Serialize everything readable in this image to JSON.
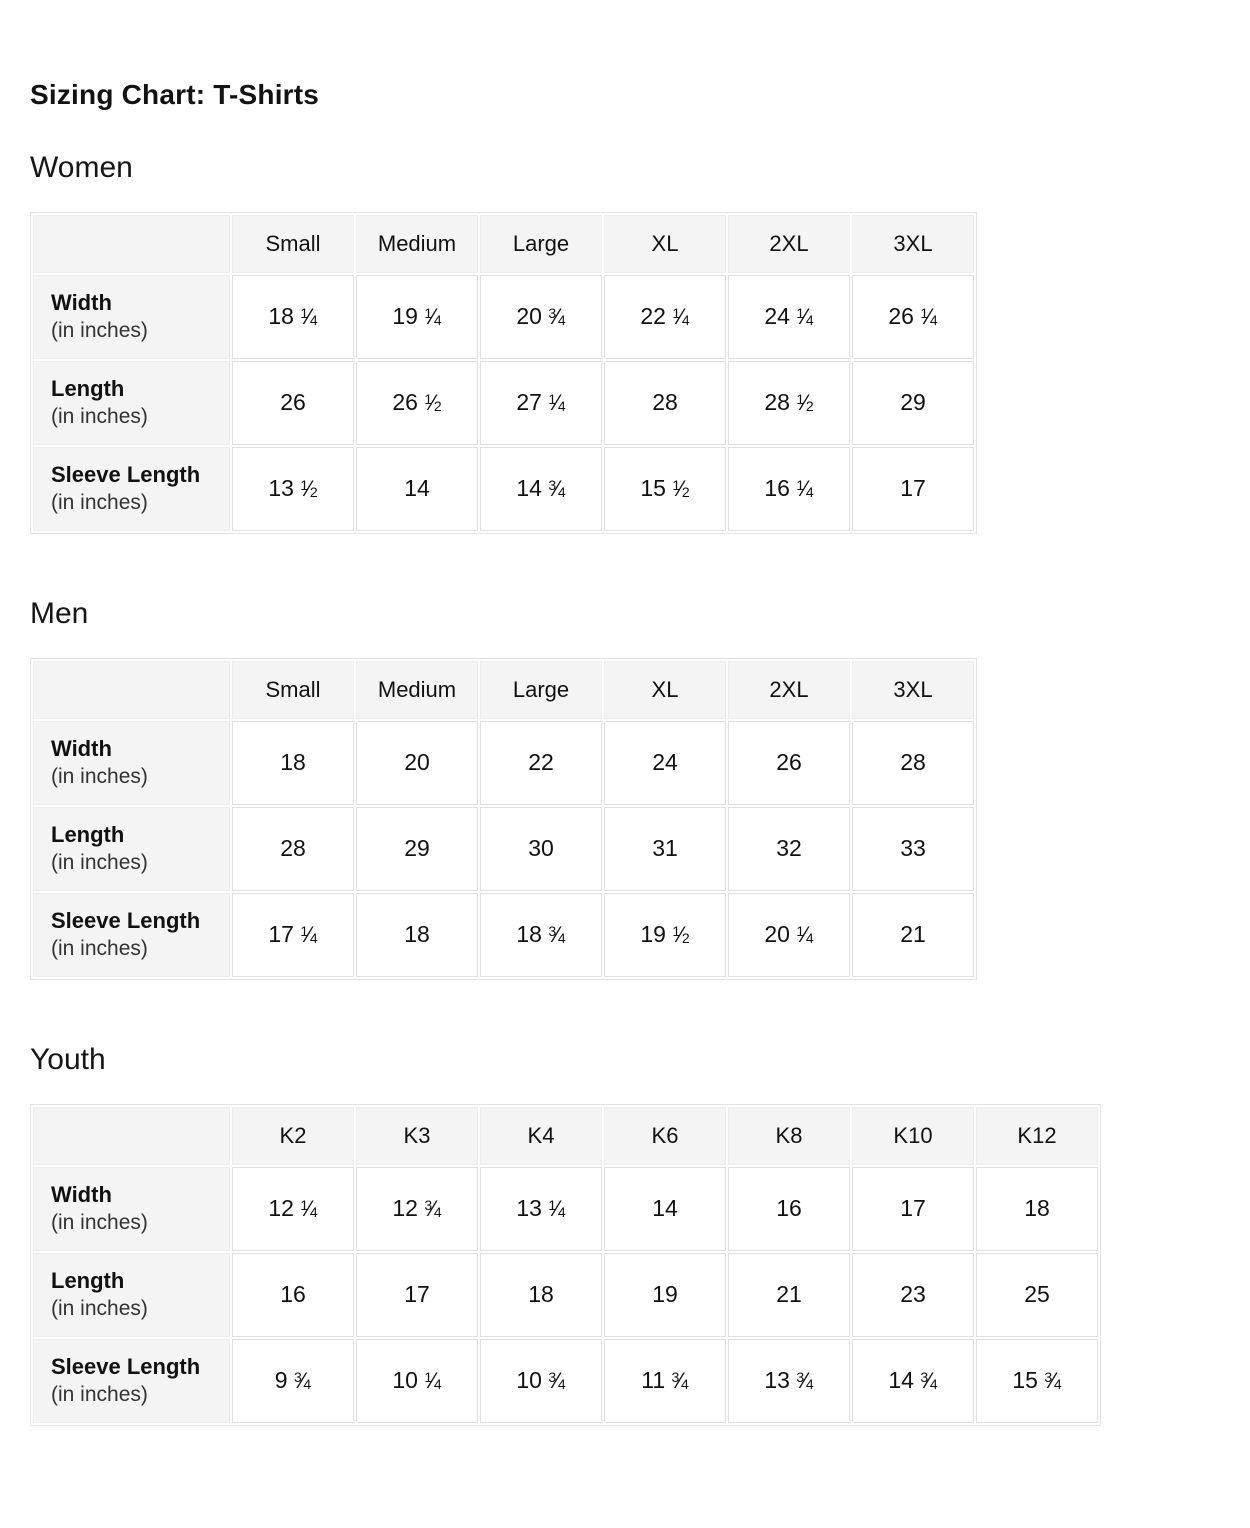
{
  "title": "Sizing Chart: T-Shirts",
  "colors": {
    "header_bg": "#f4f4f4",
    "cell_border": "#e0e0e0",
    "text": "#111111",
    "unit_text": "#333333"
  },
  "women": {
    "heading": "Women",
    "columns": [
      "Small",
      "Medium",
      "Large",
      "XL",
      "2XL",
      "3XL"
    ],
    "rows": [
      {
        "label": "Width",
        "unit": "(in inches)",
        "values": [
          "18 ¼",
          "19 ¼",
          "20 ¾",
          "22 ¼",
          "24 ¼",
          "26 ¼"
        ]
      },
      {
        "label": "Length",
        "unit": "(in inches)",
        "values": [
          "26",
          "26 ½",
          "27 ¼",
          "28",
          "28 ½",
          "29"
        ]
      },
      {
        "label": "Sleeve Length",
        "unit": "(in inches)",
        "values": [
          "13 ½",
          "14",
          "14 ¾",
          "15 ½",
          "16 ¼",
          "17"
        ]
      }
    ]
  },
  "men": {
    "heading": "Men",
    "columns": [
      "Small",
      "Medium",
      "Large",
      "XL",
      "2XL",
      "3XL"
    ],
    "rows": [
      {
        "label": "Width",
        "unit": "(in inches)",
        "values": [
          "18",
          "20",
          "22",
          "24",
          "26",
          "28"
        ]
      },
      {
        "label": "Length",
        "unit": "(in inches)",
        "values": [
          "28",
          "29",
          "30",
          "31",
          "32",
          "33"
        ]
      },
      {
        "label": "Sleeve Length",
        "unit": "(in inches)",
        "values": [
          "17 ¼",
          "18",
          "18 ¾",
          "19 ½",
          "20 ¼",
          "21"
        ]
      }
    ]
  },
  "youth": {
    "heading": "Youth",
    "columns": [
      "K2",
      "K3",
      "K4",
      "K6",
      "K8",
      "K10",
      "K12"
    ],
    "rows": [
      {
        "label": "Width",
        "unit": "(in inches)",
        "values": [
          "12 ¼",
          "12 ¾",
          "13 ¼",
          "14",
          "16",
          "17",
          "18"
        ]
      },
      {
        "label": "Length",
        "unit": "(in inches)",
        "values": [
          "16",
          "17",
          "18",
          "19",
          "21",
          "23",
          "25"
        ]
      },
      {
        "label": "Sleeve Length",
        "unit": "(in inches)",
        "values": [
          "9 ¾",
          "10 ¼",
          "10 ¾",
          "11 ¾",
          "13 ¾",
          "14 ¾",
          "15 ¾"
        ]
      }
    ]
  }
}
